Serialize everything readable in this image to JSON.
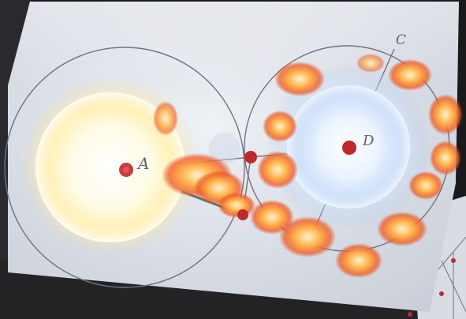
{
  "scene": {
    "labels": {
      "point_a": "A",
      "point_c": "C",
      "point_d": "D"
    },
    "colors": {
      "paper": "#dfe3ea",
      "line": "#6e7480",
      "dot": "#c0282c",
      "flame_core": "#fff4cc",
      "flame_mid": "#ff9a3c",
      "flame_edge": "#e0401c",
      "left_glow": "#fffbe6",
      "right_glow": "#e8f2ff",
      "background": "#1a1a1c"
    }
  }
}
